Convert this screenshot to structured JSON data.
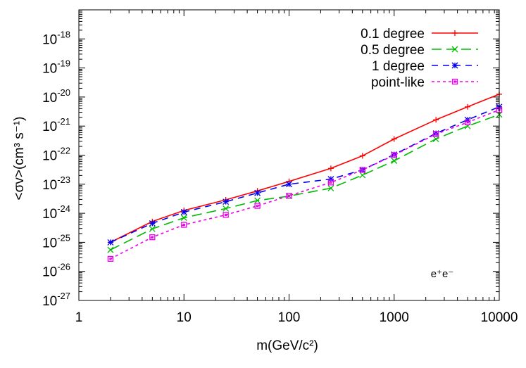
{
  "chart_data": {
    "type": "line",
    "xlabel": "m(GeV/c²)",
    "ylabel": "<σv>(cm³ s⁻¹)",
    "xscale": "log",
    "yscale": "log",
    "xlim": [
      1,
      10000
    ],
    "ylim": [
      1e-27,
      1e-17
    ],
    "x_ticks": [
      "1",
      "10",
      "100",
      "1000",
      "10000"
    ],
    "y_ticks": [
      {
        "base": "10",
        "exp": "-27"
      },
      {
        "base": "10",
        "exp": "-26"
      },
      {
        "base": "10",
        "exp": "-25"
      },
      {
        "base": "10",
        "exp": "-24"
      },
      {
        "base": "10",
        "exp": "-23"
      },
      {
        "base": "10",
        "exp": "-22"
      },
      {
        "base": "10",
        "exp": "-21"
      },
      {
        "base": "10",
        "exp": "-20"
      },
      {
        "base": "10",
        "exp": "-19"
      },
      {
        "base": "10",
        "exp": "-18"
      }
    ],
    "annotation": "e⁺e⁻",
    "grid": false,
    "legend_position": "top-right",
    "x": [
      2,
      5,
      10,
      25,
      50,
      100,
      250,
      500,
      1000,
      2500,
      5000,
      10000
    ],
    "series": [
      {
        "name": "0.1 degree",
        "color": "#ff0000",
        "dash": "solid",
        "marker": "plus",
        "values": [
          1e-25,
          5.2e-25,
          1.25e-24,
          2.9e-24,
          5.9e-24,
          1.25e-23,
          3.5e-23,
          9.5e-23,
          3.6e-22,
          1.65e-21,
          4.6e-21,
          1.25e-20
        ]
      },
      {
        "name": "0.5 degree",
        "color": "#00bb00",
        "dash": "long",
        "marker": "cross",
        "values": [
          5.5e-26,
          2.9e-25,
          7e-25,
          1.45e-24,
          2.75e-24,
          3.9e-24,
          7.3e-24,
          2.05e-23,
          6.4e-23,
          3.6e-22,
          1e-21,
          2.5e-21
        ]
      },
      {
        "name": "1 degree",
        "color": "#0000ee",
        "dash": "medium",
        "marker": "star",
        "values": [
          1e-25,
          4.5e-25,
          1.1e-24,
          2.5e-24,
          5e-24,
          1e-23,
          1.5e-23,
          3.1e-23,
          1.05e-22,
          5.6e-22,
          1.65e-21,
          4.6e-21
        ]
      },
      {
        "name": "point-like",
        "color": "#ee00ee",
        "dash": "short",
        "marker": "square",
        "values": [
          2.7e-26,
          1.5e-25,
          4e-25,
          8.8e-25,
          1.8e-24,
          4e-24,
          1.15e-23,
          3.1e-23,
          1e-22,
          5.3e-22,
          1.35e-21,
          3.6e-21
        ]
      }
    ]
  }
}
